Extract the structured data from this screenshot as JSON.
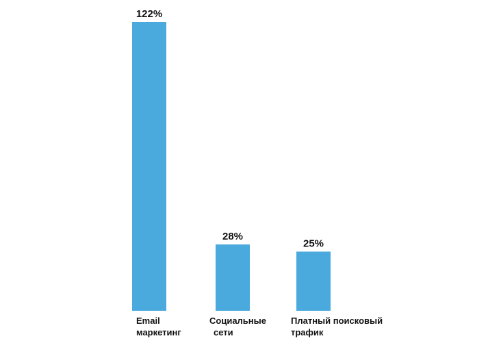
{
  "chart_data": {
    "type": "bar",
    "categories": [
      [
        "Email",
        "маркетинг"
      ],
      [
        "Социальные",
        "сети"
      ],
      [
        "Платный поисковый",
        "трафик"
      ]
    ],
    "values": [
      122,
      28,
      25
    ],
    "value_labels": [
      "122%",
      "28%",
      "25%"
    ],
    "title": "",
    "xlabel": "",
    "ylabel": "",
    "ylim": [
      0,
      122
    ],
    "grid": false,
    "legend": "none",
    "bar_color": "#4aaade"
  }
}
